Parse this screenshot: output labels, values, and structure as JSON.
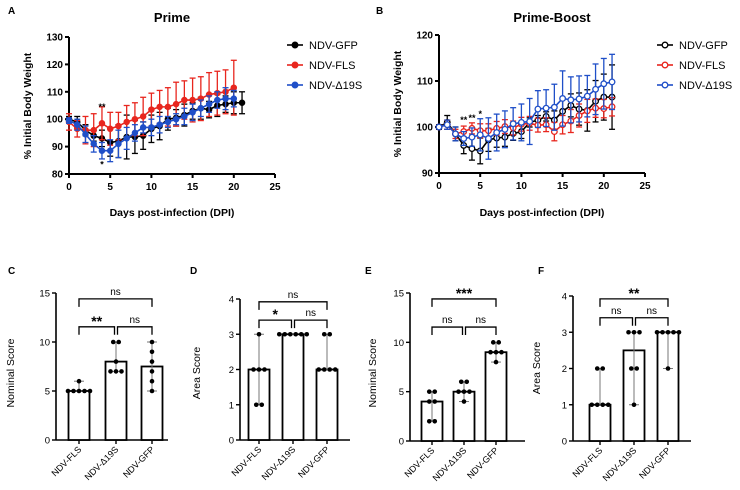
{
  "panel_letters": [
    "A",
    "B",
    "C",
    "D",
    "E",
    "F"
  ],
  "chart_data": [
    {
      "type": "line",
      "panel": "A",
      "title": "Prime",
      "xlabel": "Days post-infection (DPI)",
      "ylabel": "% Initial Body Weight",
      "xlim": [
        0,
        25
      ],
      "ylim": [
        80,
        130
      ],
      "xticks": [
        0,
        5,
        10,
        15,
        20,
        25
      ],
      "yticks": [
        80,
        90,
        100,
        110,
        120,
        130
      ],
      "marker": "filled",
      "legend": "right",
      "series": [
        {
          "name": "NDV-GFP",
          "color": "#000000",
          "x": [
            0,
            1,
            2,
            3,
            4,
            5,
            6,
            7,
            8,
            9,
            10,
            11,
            12,
            13,
            14,
            15,
            16,
            17,
            18,
            19,
            20,
            21
          ],
          "y": [
            100,
            99,
            96,
            94,
            93,
            91.5,
            92,
            93.5,
            93.5,
            94,
            96.5,
            97.5,
            100,
            100.5,
            101.5,
            103,
            104,
            103.5,
            105,
            105.5,
            106,
            106
          ],
          "err": [
            1,
            2,
            2,
            2,
            3,
            5,
            6,
            8,
            6,
            5,
            5,
            5,
            4,
            3,
            4,
            3,
            4,
            3,
            4,
            3,
            4,
            4
          ]
        },
        {
          "name": "NDV-FLS",
          "color": "#e8261e",
          "x": [
            0,
            1,
            2,
            3,
            4,
            5,
            6,
            7,
            8,
            9,
            10,
            11,
            12,
            13,
            14,
            15,
            16,
            17,
            18,
            19,
            20
          ],
          "y": [
            99,
            96.5,
            96,
            96,
            98.5,
            96.5,
            97.5,
            99,
            100,
            101,
            103.5,
            104.5,
            104.5,
            105.5,
            107,
            107,
            107.5,
            109,
            109.5,
            110,
            111.5
          ],
          "err": [
            3,
            3,
            5,
            6,
            6,
            6,
            5,
            6,
            6,
            7,
            6,
            6,
            7,
            8,
            7,
            8,
            8,
            8,
            8,
            8,
            10
          ]
        },
        {
          "name": "NDV-Δ19S",
          "color": "#1f4fc8",
          "x": [
            0,
            1,
            2,
            3,
            4,
            5,
            6,
            7,
            8,
            9,
            10,
            11,
            12,
            13,
            14,
            15,
            16,
            17,
            18,
            19,
            20
          ],
          "y": [
            99.5,
            98,
            94.5,
            91,
            88.5,
            88.5,
            91,
            93,
            95,
            97,
            97,
            98,
            99,
            100,
            101,
            102.5,
            104,
            105.5,
            107,
            107.5,
            107.5
          ],
          "err": [
            1,
            2,
            3,
            3,
            3,
            4,
            5,
            4,
            3,
            2,
            3,
            3,
            2,
            2,
            3,
            3,
            3,
            3,
            3,
            4,
            3
          ]
        }
      ],
      "annotations": [
        {
          "x": 4,
          "y": 104.5,
          "text": "**"
        },
        {
          "x": 4,
          "y": 83.5,
          "text": "*"
        }
      ]
    },
    {
      "type": "line",
      "panel": "B",
      "title": "Prime-Boost",
      "xlabel": "Days post-infection (DPI)",
      "ylabel": "% Initial Body Weight",
      "xlim": [
        0,
        25
      ],
      "ylim": [
        90,
        120
      ],
      "xticks": [
        0,
        5,
        10,
        15,
        20,
        25
      ],
      "yticks": [
        90,
        100,
        110,
        120
      ],
      "marker": "open",
      "legend": "right",
      "series": [
        {
          "name": "NDV-GFP",
          "color": "#000000",
          "x": [
            0,
            1,
            2,
            3,
            4,
            5,
            6,
            7,
            8,
            9,
            10,
            11,
            12,
            13,
            14,
            15,
            16,
            17,
            18,
            19,
            20,
            21
          ],
          "y": [
            100,
            101,
            98.5,
            96,
            95.3,
            94.8,
            97.2,
            97.6,
            97.8,
            98.6,
            99,
            101,
            101.5,
            102.3,
            101.5,
            103.4,
            104.7,
            103.9,
            103.6,
            105.6,
            106.5,
            106.5
          ],
          "err": [
            0.5,
            1.5,
            1.5,
            1.8,
            2.5,
            2.8,
            2.5,
            2,
            2,
            1.5,
            1.5,
            1,
            1,
            1,
            2,
            3,
            2.5,
            3.5,
            4.5,
            4.5,
            5,
            7
          ]
        },
        {
          "name": "NDV-FLS",
          "color": "#e8261e",
          "x": [
            0,
            1,
            2,
            3,
            4,
            5,
            6,
            7,
            8,
            9,
            10,
            11,
            12,
            13,
            14,
            15,
            16,
            17,
            18,
            19,
            20,
            21
          ],
          "y": [
            100,
            100.5,
            98.5,
            99,
            99.7,
            99.2,
            99.2,
            99.7,
            100.1,
            99.8,
            100.6,
            100.8,
            100.4,
            100.5,
            99,
            100.5,
            101.3,
            102.5,
            103.5,
            104.1,
            104,
            104.4
          ],
          "err": [
            0.3,
            1,
            1,
            1.2,
            1.2,
            1.5,
            1.5,
            1.5,
            1.5,
            1.5,
            1.5,
            1.5,
            1.5,
            1.5,
            2,
            2,
            2.5,
            2.5,
            2.5,
            2,
            2,
            2
          ]
        },
        {
          "name": "NDV-Δ19S",
          "color": "#1f4fc8",
          "x": [
            0,
            1,
            2,
            3,
            4,
            5,
            6,
            7,
            8,
            9,
            10,
            11,
            12,
            13,
            14,
            15,
            16,
            17,
            18,
            19,
            20,
            21
          ],
          "y": [
            100,
            100.5,
            98.5,
            97.5,
            97.8,
            98.3,
            97.5,
            98.8,
            99.5,
            100.7,
            101,
            101.2,
            103.9,
            104.1,
            104.3,
            106.2,
            105.9,
            106.1,
            106.7,
            108.2,
            109.4,
            109.8
          ],
          "err": [
            0.3,
            1,
            1.5,
            1.5,
            2,
            3.5,
            4.5,
            4,
            4,
            3.5,
            4,
            5,
            4,
            4,
            5,
            6,
            5,
            5,
            4.5,
            5.5,
            5.5,
            6
          ]
        }
      ],
      "annotations": [
        {
          "x": 3,
          "y": 101.5,
          "text": "**"
        },
        {
          "x": 4,
          "y": 102,
          "text": "**"
        },
        {
          "x": 5,
          "y": 102.8,
          "text": "*"
        }
      ]
    },
    {
      "type": "bar",
      "panel": "C",
      "ylabel": "Nominal Score",
      "categories": [
        "NDV-FLS",
        "NDV-Δ19S",
        "NDV-GFP"
      ],
      "values": [
        5,
        8,
        7.5
      ],
      "points": [
        [
          6,
          5,
          5,
          5,
          5,
          5
        ],
        [
          10,
          10,
          8,
          7,
          7,
          7
        ],
        [
          10,
          9,
          8,
          7,
          6,
          5
        ]
      ],
      "ylim": [
        0,
        15
      ],
      "yticks": [
        0,
        5,
        10,
        15
      ],
      "comparisons": [
        {
          "groups": [
            0,
            1
          ],
          "label": "**"
        },
        {
          "groups": [
            1,
            2
          ],
          "label": "ns"
        },
        {
          "groups": [
            0,
            2
          ],
          "label": "ns"
        }
      ]
    },
    {
      "type": "bar",
      "panel": "D",
      "ylabel": "Area Score",
      "categories": [
        "NDV-FLS",
        "NDV-Δ19S",
        "NDV-GFP"
      ],
      "values": [
        2,
        3,
        2
      ],
      "points": [
        [
          3,
          2,
          2,
          2,
          1,
          1
        ],
        [
          3,
          3,
          3,
          3,
          3,
          3
        ],
        [
          3,
          3,
          2,
          2,
          2,
          2
        ]
      ],
      "ylim": [
        0,
        4
      ],
      "yticks": [
        0,
        1,
        2,
        3,
        4
      ],
      "comparisons": [
        {
          "groups": [
            0,
            1
          ],
          "label": "*"
        },
        {
          "groups": [
            1,
            2
          ],
          "label": "ns"
        },
        {
          "groups": [
            0,
            2
          ],
          "label": "ns"
        }
      ]
    },
    {
      "type": "bar",
      "panel": "E",
      "ylabel": "Nominal Score",
      "categories": [
        "NDV-FLS",
        "NDV-Δ19S",
        "NDV-GFP"
      ],
      "values": [
        4,
        5,
        9
      ],
      "points": [
        [
          5,
          5,
          4,
          4,
          2,
          2
        ],
        [
          6,
          6,
          5,
          5,
          5,
          4
        ],
        [
          10,
          10,
          9,
          9,
          9,
          8
        ]
      ],
      "ylim": [
        0,
        15
      ],
      "yticks": [
        0,
        5,
        10,
        15
      ],
      "comparisons": [
        {
          "groups": [
            0,
            1
          ],
          "label": "ns"
        },
        {
          "groups": [
            1,
            2
          ],
          "label": "ns"
        },
        {
          "groups": [
            0,
            2
          ],
          "label": "***"
        }
      ]
    },
    {
      "type": "bar",
      "panel": "F",
      "ylabel": "Area Score",
      "categories": [
        "NDV-FLS",
        "NDV-Δ19S",
        "NDV-GFP"
      ],
      "values": [
        1,
        2.5,
        3
      ],
      "points": [
        [
          2,
          2,
          1,
          1,
          1,
          1
        ],
        [
          3,
          3,
          3,
          2,
          2,
          1
        ],
        [
          3,
          3,
          3,
          3,
          3,
          2
        ]
      ],
      "ylim": [
        0,
        4
      ],
      "yticks": [
        0,
        1,
        2,
        3,
        4
      ],
      "comparisons": [
        {
          "groups": [
            0,
            1
          ],
          "label": "ns"
        },
        {
          "groups": [
            1,
            2
          ],
          "label": "ns"
        },
        {
          "groups": [
            0,
            2
          ],
          "label": "**"
        }
      ]
    }
  ]
}
